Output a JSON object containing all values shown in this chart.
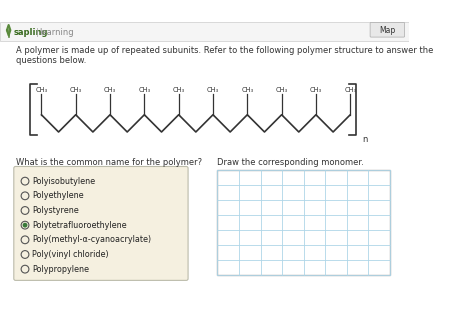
{
  "bg_color": "#f0ede0",
  "page_bg": "#ffffff",
  "title_text": "A polymer is made up of repeated subunits. Refer to the following polymer structure to answer the\nquestions below.",
  "question_text": "What is the common name for the polymer?",
  "draw_text": "Draw the corresponding monomer.",
  "options": [
    "Polyisobutylene",
    "Polyethylene",
    "Polystyrene",
    "Polytetrafluoroethylene",
    "Poly(methyl-α-cyanoacrylate)",
    "Poly(vinyl chloride)",
    "Polypropylene"
  ],
  "selected_index": 3,
  "sapling_green": "#5a8a3c",
  "radio_border": "#555555",
  "selected_radio_fill": "#3a7a3a",
  "grid_color": "#aed6e8",
  "grid_border": "#aaaaaa",
  "polymer_bracket_color": "#333333",
  "ch3_label": "CH₃",
  "n_label": "n"
}
